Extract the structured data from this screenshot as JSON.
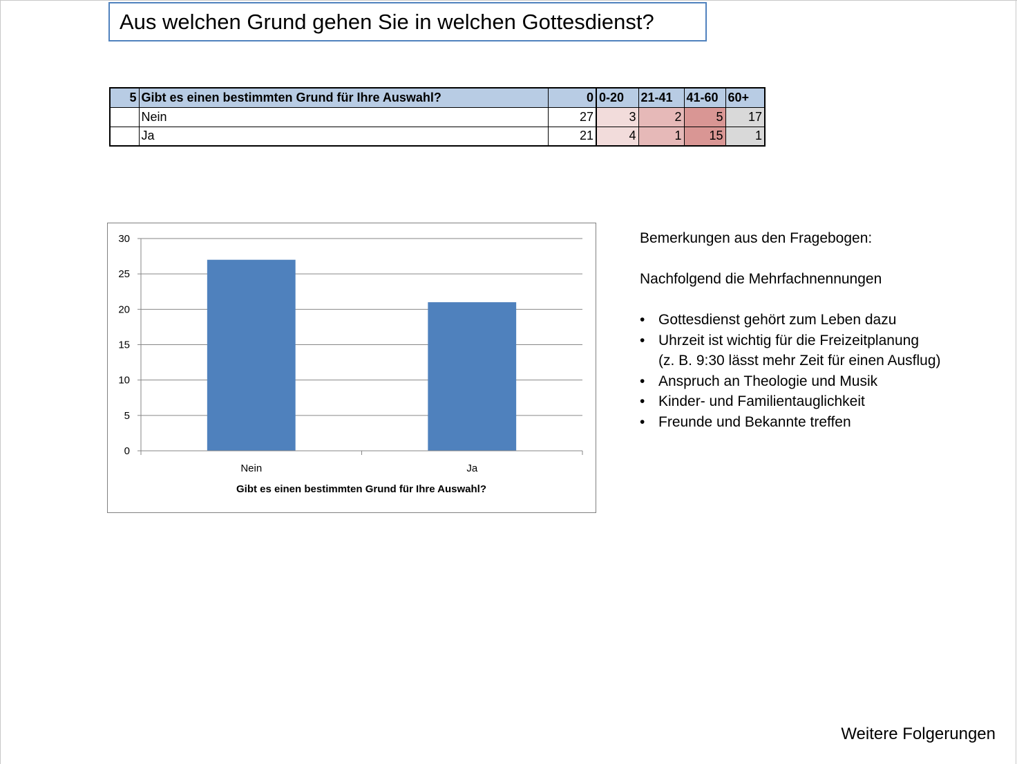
{
  "title": "Aus welchen Grund gehen Sie in welchen Gottesdienst?",
  "table": {
    "header": {
      "index": "5",
      "question": "Gibt es einen bestimmten Grund für Ihre Auswahl?",
      "total": "0",
      "groups": [
        "0-20",
        "21-41",
        "41-60",
        "60+"
      ]
    },
    "rows": [
      {
        "label": "Nein",
        "total": "27",
        "values": [
          "3",
          "2",
          "5",
          "17"
        ]
      },
      {
        "label": "Ja",
        "total": "21",
        "values": [
          "4",
          "1",
          "15",
          "1"
        ]
      }
    ],
    "colors": {
      "header": "#b8cce4",
      "g1": "#f2dcdb",
      "g2": "#e6b9b8",
      "g3": "#d99694",
      "g4": "#d9d9d9"
    }
  },
  "chart_data": {
    "type": "bar",
    "categories": [
      "Nein",
      "Ja"
    ],
    "values": [
      27,
      21
    ],
    "xlabel": "Gibt es einen bestimmten Grund für Ihre Auswahl?",
    "ylabel": "",
    "ylim": [
      0,
      30
    ],
    "yticks": [
      "0",
      "5",
      "10",
      "15",
      "20",
      "25",
      "30"
    ],
    "grid": true,
    "bar_color": "#4f81bd"
  },
  "notes": {
    "heading": "Bemerkungen  aus den Fragebogen:",
    "subheading": "Nachfolgend die Mehrfachnennungen",
    "items": [
      "Gottesdienst gehört zum Leben dazu",
      "Uhrzeit ist wichtig für die Freizeitplanung",
      "(z. B. 9:30 lässt mehr Zeit für einen Ausflug)",
      "Anspruch an Theologie und Musik",
      "Kinder- und Familientauglichkeit",
      "Freunde und Bekannte treffen"
    ]
  },
  "footer": {
    "link_label": "Weitere Folgerungen"
  }
}
